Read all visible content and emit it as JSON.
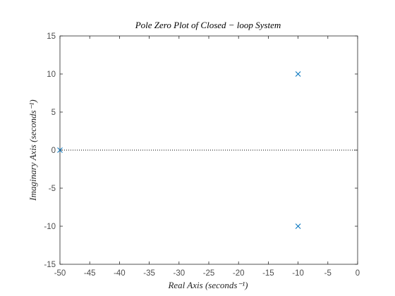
{
  "chart_data": {
    "type": "scatter",
    "title": "Pole Zero Plot of Closed − loop System",
    "xlabel": "Real Axis (seconds⁻¹)",
    "ylabel": "Imaginary Axis (seconds⁻¹)",
    "xlim": [
      -50,
      0
    ],
    "ylim": [
      -15,
      15
    ],
    "xticks": [
      -50,
      -45,
      -40,
      -35,
      -30,
      -25,
      -20,
      -15,
      -10,
      -5,
      0
    ],
    "yticks": [
      -15,
      -10,
      -5,
      0,
      5,
      10,
      15
    ],
    "grid": false,
    "zero_line": "dotted horizontal at y = 0",
    "marker": "x",
    "series": [
      {
        "points": [
          {
            "x": -50,
            "y": 0
          },
          {
            "x": -10,
            "y": 10
          },
          {
            "x": -10,
            "y": -10
          }
        ]
      }
    ]
  },
  "colors": {
    "marker": "#0072BD",
    "axis": "#262626",
    "tick_text": "#4d4d4d",
    "zero_line": "#000000",
    "background": "#ffffff"
  }
}
